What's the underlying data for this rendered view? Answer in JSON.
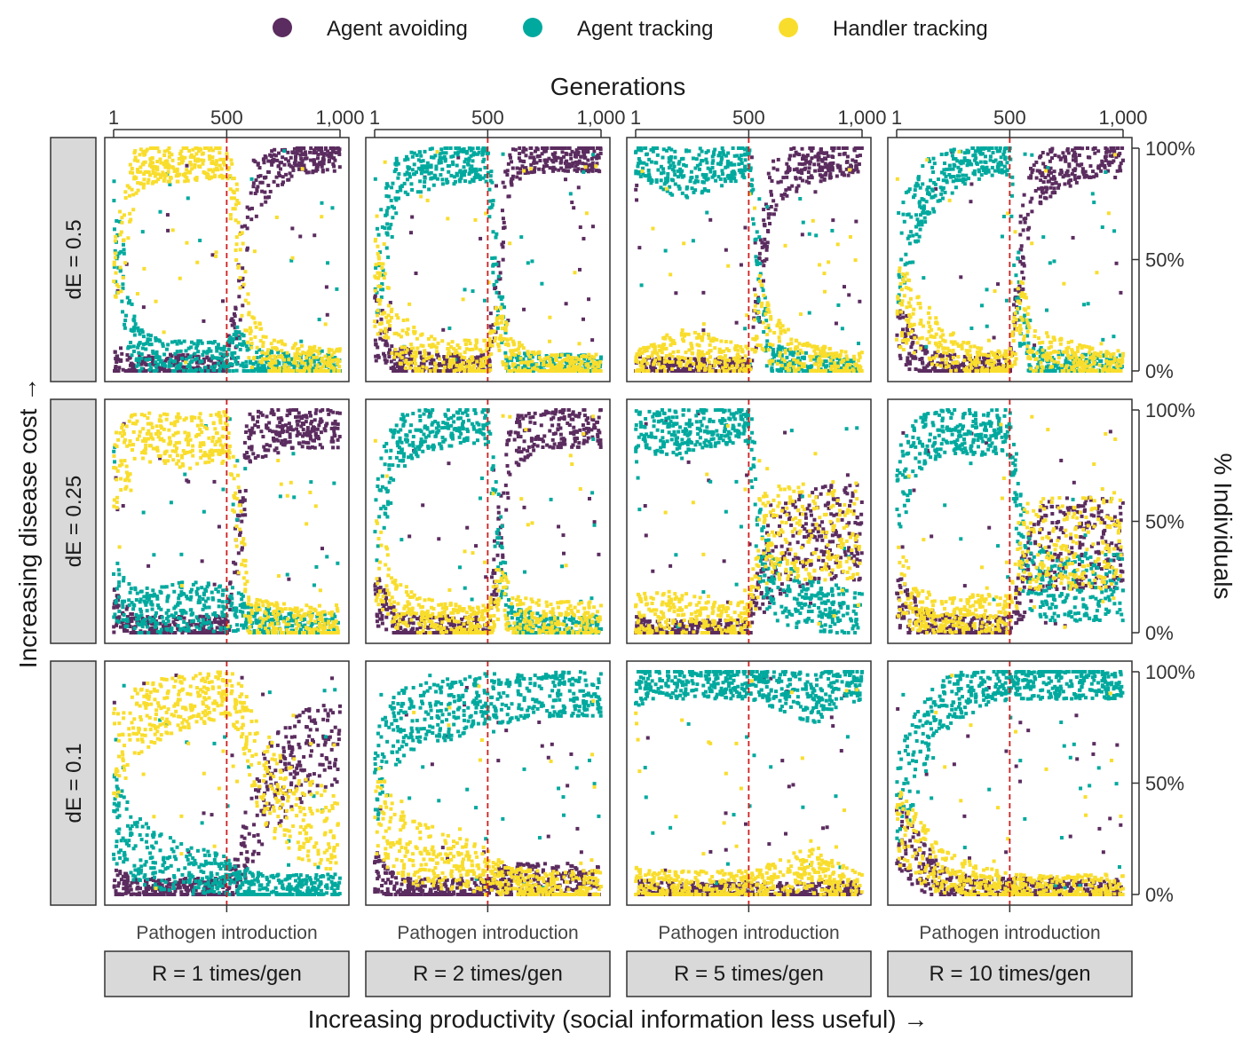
{
  "chart_data": {
    "type": "scatter",
    "legend": {
      "placement": "top",
      "entries": [
        {
          "name": "Agent avoiding",
          "color": "#5b2c5f"
        },
        {
          "name": "Agent tracking",
          "color": "#00a99e"
        },
        {
          "name": "Handler tracking",
          "color": "#f9dd2d"
        }
      ]
    },
    "x_axis": {
      "title": "Generations",
      "position": "top",
      "ticks": [
        1,
        500,
        1000
      ],
      "tick_labels": [
        "1",
        "500",
        "1,000"
      ],
      "range": [
        1,
        1000
      ]
    },
    "y_axis": {
      "title": "% Individuals",
      "position": "right",
      "ticks": [
        0,
        0.5,
        1
      ],
      "tick_labels": [
        "0%",
        "50%",
        "100%"
      ],
      "range": [
        0,
        1
      ]
    },
    "row_axis_title": "Increasing disease cost →",
    "column_axis_title": "Increasing productivity (social information less useful) →",
    "vline": {
      "x": 500,
      "color": "#d11f1f",
      "label": "Pathogen introduction"
    },
    "rows": [
      "dE = 0.5",
      "dE = 0.25",
      "dE = 0.1"
    ],
    "columns": [
      "R = 1 times/gen",
      "R = 2 times/gen",
      "R = 5 times/gen",
      "R = 10 times/gen"
    ],
    "x": [
      1,
      100,
      200,
      300,
      400,
      500,
      550,
      600,
      700,
      800,
      900,
      1000
    ],
    "panels": [
      {
        "row": 0,
        "col": 0,
        "series": [
          {
            "name": "Agent avoiding",
            "values": [
              0.05,
              0.02,
              0.02,
              0.02,
              0.02,
              0.02,
              0.3,
              0.8,
              0.9,
              0.95,
              0.96,
              0.96
            ]
          },
          {
            "name": "Agent tracking",
            "values": [
              0.6,
              0.1,
              0.06,
              0.06,
              0.06,
              0.05,
              0.1,
              0.05,
              0.03,
              0.02,
              0.02,
              0.02
            ]
          },
          {
            "name": "Handler tracking",
            "values": [
              0.4,
              0.9,
              0.93,
              0.93,
              0.94,
              0.94,
              0.6,
              0.15,
              0.07,
              0.05,
              0.04,
              0.04
            ]
          }
        ]
      },
      {
        "row": 0,
        "col": 1,
        "series": [
          {
            "name": "Agent avoiding",
            "values": [
              0.2,
              0.04,
              0.03,
              0.02,
              0.02,
              0.02,
              0.5,
              0.92,
              0.95,
              0.96,
              0.96,
              0.96
            ]
          },
          {
            "name": "Agent tracking",
            "values": [
              0.4,
              0.85,
              0.9,
              0.92,
              0.93,
              0.93,
              0.3,
              0.03,
              0.02,
              0.02,
              0.02,
              0.02
            ]
          },
          {
            "name": "Handler tracking",
            "values": [
              0.4,
              0.15,
              0.08,
              0.06,
              0.06,
              0.06,
              0.2,
              0.07,
              0.03,
              0.02,
              0.02,
              0.02
            ]
          }
        ]
      },
      {
        "row": 0,
        "col": 2,
        "series": [
          {
            "name": "Agent avoiding",
            "values": [
              0.02,
              0.01,
              0.01,
              0.01,
              0.01,
              0.01,
              0.4,
              0.8,
              0.9,
              0.93,
              0.95,
              0.95
            ]
          },
          {
            "name": "Agent tracking",
            "values": [
              0.95,
              0.92,
              0.88,
              0.9,
              0.92,
              0.95,
              0.3,
              0.05,
              0.03,
              0.02,
              0.02,
              0.02
            ]
          },
          {
            "name": "Handler tracking",
            "values": [
              0.03,
              0.06,
              0.1,
              0.08,
              0.06,
              0.04,
              0.3,
              0.15,
              0.07,
              0.05,
              0.03,
              0.03
            ]
          }
        ]
      },
      {
        "row": 0,
        "col": 3,
        "series": [
          {
            "name": "Agent avoiding",
            "values": [
              0.2,
              0.05,
              0.02,
              0.02,
              0.02,
              0.02,
              0.5,
              0.85,
              0.9,
              0.93,
              0.95,
              0.95
            ]
          },
          {
            "name": "Agent tracking",
            "values": [
              0.5,
              0.75,
              0.88,
              0.92,
              0.95,
              0.95,
              0.2,
              0.05,
              0.03,
              0.02,
              0.02,
              0.02
            ]
          },
          {
            "name": "Handler tracking",
            "values": [
              0.3,
              0.2,
              0.1,
              0.06,
              0.03,
              0.03,
              0.3,
              0.1,
              0.07,
              0.05,
              0.03,
              0.03
            ]
          }
        ]
      },
      {
        "row": 1,
        "col": 0,
        "series": [
          {
            "name": "Agent avoiding",
            "values": [
              0.1,
              0.02,
              0.02,
              0.02,
              0.02,
              0.02,
              0.4,
              0.88,
              0.9,
              0.92,
              0.92,
              0.92
            ]
          },
          {
            "name": "Agent tracking",
            "values": [
              0.2,
              0.1,
              0.1,
              0.12,
              0.12,
              0.1,
              0.1,
              0.05,
              0.04,
              0.03,
              0.03,
              0.03
            ]
          },
          {
            "name": "Handler tracking",
            "values": [
              0.7,
              0.88,
              0.88,
              0.86,
              0.86,
              0.88,
              0.5,
              0.07,
              0.06,
              0.05,
              0.05,
              0.05
            ]
          }
        ]
      },
      {
        "row": 1,
        "col": 1,
        "series": [
          {
            "name": "Agent avoiding",
            "values": [
              0.15,
              0.03,
              0.02,
              0.02,
              0.02,
              0.02,
              0.4,
              0.85,
              0.9,
              0.92,
              0.92,
              0.92
            ]
          },
          {
            "name": "Agent tracking",
            "values": [
              0.5,
              0.85,
              0.9,
              0.92,
              0.93,
              0.93,
              0.4,
              0.05,
              0.03,
              0.02,
              0.02,
              0.02
            ]
          },
          {
            "name": "Handler tracking",
            "values": [
              0.35,
              0.12,
              0.08,
              0.06,
              0.05,
              0.05,
              0.2,
              0.1,
              0.07,
              0.06,
              0.06,
              0.06
            ]
          }
        ]
      },
      {
        "row": 1,
        "col": 2,
        "series": [
          {
            "name": "Agent avoiding",
            "values": [
              0.02,
              0.01,
              0.01,
              0.01,
              0.01,
              0.01,
              0.2,
              0.35,
              0.4,
              0.45,
              0.45,
              0.45
            ]
          },
          {
            "name": "Agent tracking",
            "values": [
              0.9,
              0.9,
              0.9,
              0.92,
              0.93,
              0.93,
              0.4,
              0.2,
              0.15,
              0.12,
              0.1,
              0.1
            ]
          },
          {
            "name": "Handler tracking",
            "values": [
              0.08,
              0.09,
              0.09,
              0.07,
              0.06,
              0.06,
              0.4,
              0.45,
              0.45,
              0.43,
              0.45,
              0.45
            ]
          }
        ]
      },
      {
        "row": 1,
        "col": 3,
        "series": [
          {
            "name": "Agent avoiding",
            "values": [
              0.15,
              0.05,
              0.03,
              0.02,
              0.02,
              0.02,
              0.2,
              0.35,
              0.4,
              0.4,
              0.4,
              0.4
            ]
          },
          {
            "name": "Agent tracking",
            "values": [
              0.6,
              0.85,
              0.9,
              0.9,
              0.9,
              0.9,
              0.4,
              0.25,
              0.2,
              0.2,
              0.2,
              0.2
            ]
          },
          {
            "name": "Handler tracking",
            "values": [
              0.25,
              0.1,
              0.07,
              0.08,
              0.08,
              0.08,
              0.4,
              0.4,
              0.4,
              0.4,
              0.4,
              0.4
            ]
          }
        ]
      },
      {
        "row": 2,
        "col": 0,
        "series": [
          {
            "name": "Agent avoiding",
            "values": [
              0.05,
              0.02,
              0.02,
              0.02,
              0.02,
              0.02,
              0.1,
              0.3,
              0.5,
              0.6,
              0.65,
              0.7
            ]
          },
          {
            "name": "Agent tracking",
            "values": [
              0.35,
              0.2,
              0.15,
              0.12,
              0.1,
              0.08,
              0.05,
              0.04,
              0.03,
              0.03,
              0.03,
              0.03
            ]
          },
          {
            "name": "Handler tracking",
            "values": [
              0.6,
              0.78,
              0.83,
              0.86,
              0.88,
              0.9,
              0.85,
              0.66,
              0.47,
              0.37,
              0.32,
              0.27
            ]
          }
        ]
      },
      {
        "row": 2,
        "col": 1,
        "series": [
          {
            "name": "Agent avoiding",
            "values": [
              0.1,
              0.02,
              0.02,
              0.02,
              0.02,
              0.02,
              0.05,
              0.06,
              0.06,
              0.06,
              0.06,
              0.06
            ]
          },
          {
            "name": "Agent tracking",
            "values": [
              0.5,
              0.75,
              0.8,
              0.82,
              0.85,
              0.88,
              0.88,
              0.88,
              0.9,
              0.9,
              0.9,
              0.9
            ]
          },
          {
            "name": "Handler tracking",
            "values": [
              0.4,
              0.23,
              0.18,
              0.16,
              0.13,
              0.1,
              0.07,
              0.06,
              0.04,
              0.04,
              0.04,
              0.04
            ]
          }
        ]
      },
      {
        "row": 2,
        "col": 2,
        "series": [
          {
            "name": "Agent avoiding",
            "values": [
              0.02,
              0.01,
              0.01,
              0.01,
              0.01,
              0.01,
              0.01,
              0.01,
              0.01,
              0.01,
              0.01,
              0.01
            ]
          },
          {
            "name": "Agent tracking",
            "values": [
              0.93,
              0.95,
              0.95,
              0.95,
              0.95,
              0.95,
              0.94,
              0.93,
              0.9,
              0.88,
              0.93,
              0.95
            ]
          },
          {
            "name": "Handler tracking",
            "values": [
              0.05,
              0.04,
              0.04,
              0.04,
              0.04,
              0.04,
              0.05,
              0.06,
              0.09,
              0.11,
              0.06,
              0.04
            ]
          }
        ]
      },
      {
        "row": 2,
        "col": 3,
        "series": [
          {
            "name": "Agent avoiding",
            "values": [
              0.3,
              0.15,
              0.05,
              0.03,
              0.02,
              0.02,
              0.02,
              0.02,
              0.02,
              0.02,
              0.02,
              0.02
            ]
          },
          {
            "name": "Agent tracking",
            "values": [
              0.4,
              0.65,
              0.85,
              0.9,
              0.93,
              0.95,
              0.95,
              0.95,
              0.95,
              0.95,
              0.95,
              0.95
            ]
          },
          {
            "name": "Handler tracking",
            "values": [
              0.3,
              0.2,
              0.1,
              0.07,
              0.05,
              0.03,
              0.03,
              0.03,
              0.03,
              0.03,
              0.03,
              0.03
            ]
          }
        ]
      }
    ]
  }
}
